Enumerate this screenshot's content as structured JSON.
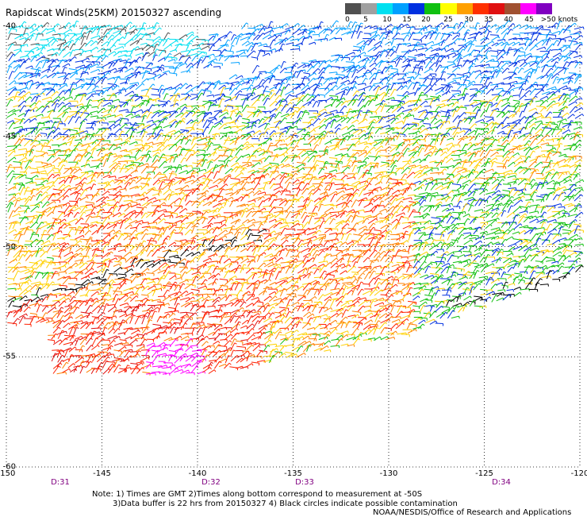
{
  "title": "Rapidscat Winds(25KM) 20150327 ascending",
  "colorbar": {
    "labels": [
      "0",
      "5",
      "10",
      "15",
      "20",
      "25",
      "30",
      "35",
      "40",
      "45",
      ">50 knots"
    ],
    "colors": [
      "#505050",
      "#a0a0a0",
      "#00e0f0",
      "#00a0ff",
      "#0030e0",
      "#10c010",
      "#ffff00",
      "#ffa000",
      "#ff3000",
      "#e01010",
      "#a05030",
      "#ff00ff",
      "#8000c0"
    ]
  },
  "lat_labels": [
    "-40",
    "-45",
    "-50",
    "-55",
    "-60"
  ],
  "lon_labels": [
    "-150",
    "-145",
    "-140",
    "-135",
    "-130",
    "-125",
    "-120"
  ],
  "day_labels": [
    "D:31",
    "D:32",
    "D:33",
    "D:34"
  ],
  "notes": [
    "Note: 1) Times are GMT 2)Times along bottom correspond to measurement at -50S",
    "3)Data buffer is 22 hrs from 20150327 4) Black circles indicate possible contamination",
    "NOAA/NESDIS/Office of Research and Applications"
  ],
  "map": {
    "lat_range": [
      -60,
      -40
    ],
    "lon_range": [
      -150,
      -120
    ],
    "wind_colors": {
      "calm": "#505050",
      "light": "#00e0f0",
      "mod_low": "#00a0ff",
      "moderate": "#0030e0",
      "fresh": "#10c010",
      "strong": "#ffd000",
      "near_gale": "#ff8000",
      "gale": "#ff2000",
      "storm": "#e01010",
      "violent": "#ff00ff",
      "contaminated": "#000000"
    }
  }
}
